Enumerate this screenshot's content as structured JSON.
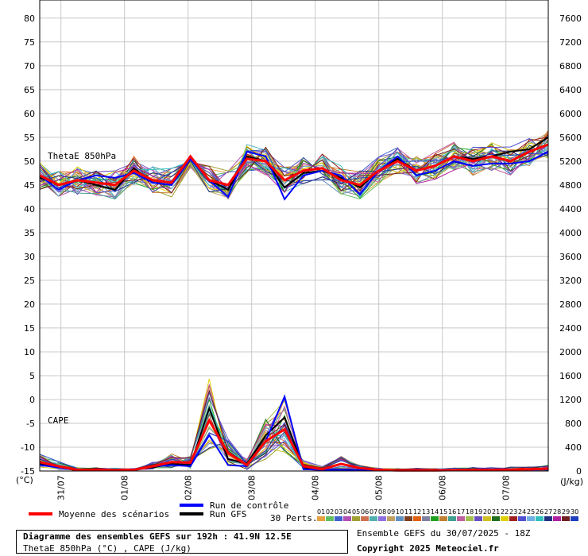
{
  "chart_data": {
    "type": "line",
    "title": "Diagramme des ensembles GEFS sur 192h : 41.9N 12.5E",
    "subtitle": "ThetaE 850hPa (°C) , CAPE (J/kg)",
    "run": "Ensemble GEFS du 30/07/2025 - 18Z",
    "copyright": "Copyright 2025 Meteociel.fr",
    "left_axis": {
      "unit_label": "(°C)",
      "ticks": [
        -15,
        -10,
        -5,
        0,
        5,
        10,
        15,
        20,
        25,
        30,
        35,
        40,
        45,
        50,
        55,
        60,
        65,
        70,
        75,
        80
      ],
      "range": [
        -15,
        80
      ]
    },
    "right_axis": {
      "unit_label": "(J/kg)",
      "ticks": [
        0,
        400,
        800,
        1200,
        1600,
        2000,
        2400,
        2800,
        3200,
        3600,
        4000,
        4400,
        4800,
        5200,
        5600,
        6000,
        6400,
        6800,
        7200,
        7600
      ],
      "range": [
        0,
        7600
      ]
    },
    "x_labels": [
      "31/07",
      "01/08",
      "02/08",
      "03/08",
      "04/08",
      "05/08",
      "06/08",
      "07/08"
    ],
    "panel_labels": {
      "thetae": "ThetaE 850hPa",
      "cape": "CAPE"
    },
    "legend": {
      "mean": "Moyenne des scénarios",
      "control": "Run de contrôle",
      "gfs": "Run GFS",
      "perts_label": "30 Perts.",
      "pert_numbers": [
        "01",
        "02",
        "03",
        "04",
        "05",
        "06",
        "07",
        "08",
        "09",
        "10",
        "11",
        "12",
        "13",
        "14",
        "15",
        "16",
        "17",
        "18",
        "19",
        "20",
        "21",
        "22",
        "23",
        "24",
        "25",
        "26",
        "27",
        "28",
        "29",
        "30"
      ],
      "pert_colors": [
        "#e8a040",
        "#60c060",
        "#4060d0",
        "#b050b0",
        "#a0a030",
        "#d07050",
        "#50b0b0",
        "#9070e0",
        "#c0a060",
        "#6090c0",
        "#7c4020",
        "#e06010",
        "#8080a0",
        "#20a020",
        "#c08030",
        "#40a090",
        "#c060a0",
        "#a0c050",
        "#6a50c0",
        "#d0c020",
        "#207020",
        "#e0d000",
        "#a02020",
        "#5050d0",
        "#70b0e0",
        "#30c0c0",
        "#203080",
        "#b020a0",
        "#702020",
        "#2040c0"
      ]
    },
    "series": [
      {
        "name": "Moyenne des scénarios",
        "color": "#ff0000",
        "thetae": [
          47,
          45,
          46,
          45.5,
          45,
          48,
          46,
          45.5,
          51,
          46,
          45,
          50.5,
          50,
          46,
          48,
          48.5,
          46,
          45,
          48,
          50,
          48,
          49,
          51,
          50,
          51,
          50,
          52,
          53.5
        ],
        "cape": [
          150,
          80,
          20,
          20,
          15,
          20,
          80,
          150,
          140,
          850,
          300,
          100,
          500,
          700,
          80,
          30,
          120,
          50,
          20,
          10,
          10,
          10,
          15,
          20,
          20,
          25,
          30,
          40
        ]
      },
      {
        "name": "Run de contrôle",
        "color": "#0000ff",
        "thetae": [
          47,
          44,
          46,
          47,
          46.5,
          47.5,
          45.5,
          45,
          50.5,
          46,
          42.5,
          52,
          51,
          42,
          47,
          48,
          47,
          43,
          48,
          51,
          47,
          48,
          50,
          49,
          49.5,
          49.5,
          50,
          52
        ],
        "cape": [
          100,
          60,
          20,
          30,
          15,
          30,
          80,
          100,
          80,
          600,
          100,
          80,
          500,
          1250,
          30,
          20,
          20,
          15,
          20,
          15,
          20,
          10,
          15,
          20,
          20,
          20,
          30,
          30
        ]
      },
      {
        "name": "Run GFS",
        "color": "#000000",
        "thetae": [
          46.5,
          45,
          46,
          45,
          44,
          48.5,
          45.5,
          45,
          51,
          46,
          44,
          51,
          50,
          44.5,
          47.5,
          48,
          46.5,
          44.5,
          48,
          50.5,
          48,
          49,
          51,
          50.5,
          51,
          52,
          52.5,
          55
        ],
        "cape": [
          120,
          70,
          20,
          20,
          15,
          30,
          60,
          120,
          100,
          1050,
          200,
          120,
          600,
          900,
          60,
          20,
          30,
          20,
          15,
          10,
          10,
          10,
          15,
          20,
          20,
          25,
          30,
          40
        ]
      }
    ]
  }
}
